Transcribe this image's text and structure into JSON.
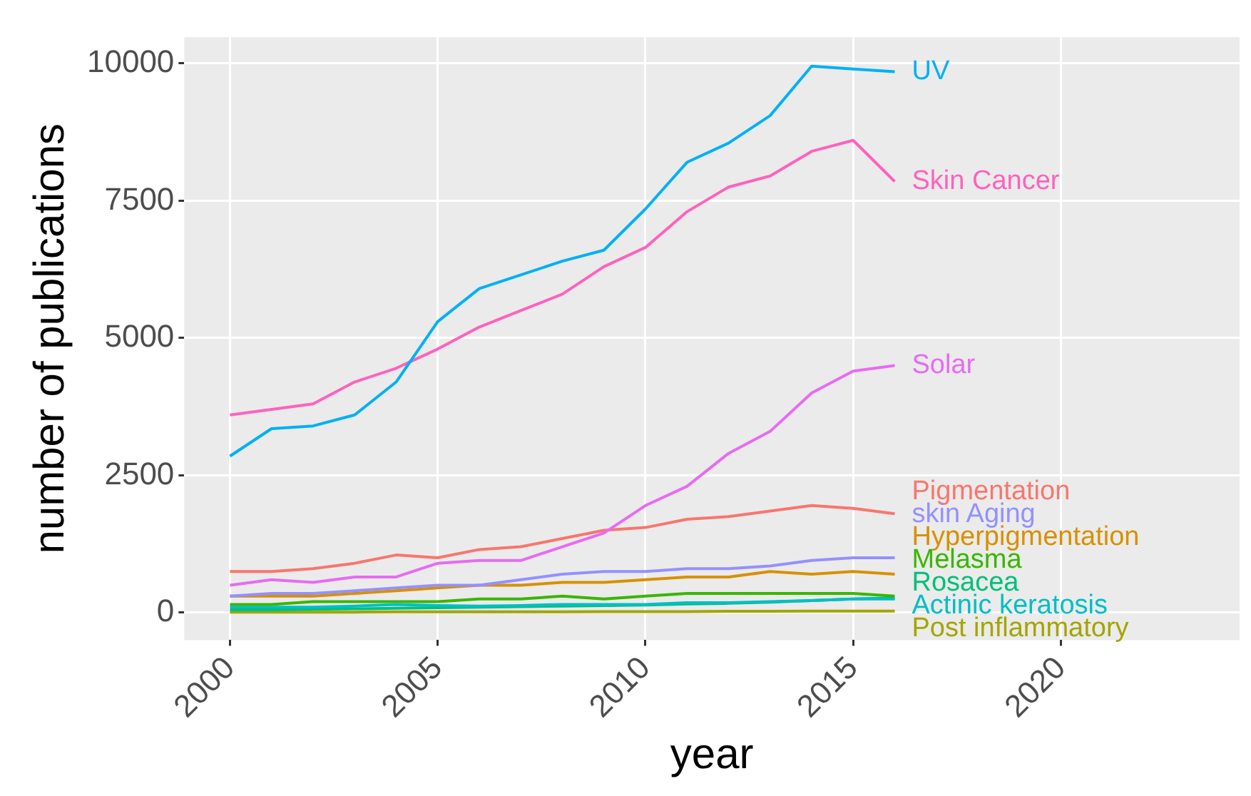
{
  "chart_data": {
    "type": "line",
    "xlabel": "year",
    "ylabel": "number of publications",
    "x": [
      2000,
      2001,
      2002,
      2003,
      2004,
      2005,
      2006,
      2007,
      2008,
      2009,
      2010,
      2011,
      2012,
      2013,
      2014,
      2015,
      2016
    ],
    "xlim": [
      1998.9,
      2024.3
    ],
    "xticks": [
      2000,
      2005,
      2010,
      2015,
      2020
    ],
    "ylim": [
      -500,
      10480
    ],
    "yticks": [
      0,
      2500,
      5000,
      7500,
      10000
    ],
    "grid": true,
    "legend": false,
    "marker": "none",
    "line_style": "solid",
    "series": [
      {
        "name": "UV",
        "color": "#00b0f6",
        "values": [
          2850,
          3350,
          3400,
          3600,
          4200,
          5300,
          5900,
          6150,
          6400,
          6600,
          7350,
          8200,
          8550,
          9050,
          9950,
          9900,
          9850
        ]
      },
      {
        "name": "Skin Cancer",
        "color": "#ff62bc",
        "values": [
          3600,
          3700,
          3800,
          4200,
          4450,
          4800,
          5200,
          5500,
          5800,
          6300,
          6650,
          7300,
          7750,
          7950,
          8400,
          8600,
          7850
        ]
      },
      {
        "name": "Solar",
        "color": "#e76bf3",
        "values": [
          500,
          600,
          550,
          650,
          650,
          900,
          950,
          950,
          1200,
          1450,
          1950,
          2300,
          2900,
          3300,
          4000,
          4400,
          4500
        ]
      },
      {
        "name": "Pigmentation",
        "color": "#f8766d",
        "values": [
          750,
          750,
          800,
          900,
          1050,
          1000,
          1150,
          1200,
          1350,
          1500,
          1550,
          1700,
          1750,
          1850,
          1950,
          1900,
          1800
        ]
      },
      {
        "name": "skin Aging",
        "color": "#9590ff",
        "values": [
          300,
          350,
          350,
          400,
          450,
          500,
          500,
          600,
          700,
          750,
          750,
          800,
          800,
          850,
          950,
          1000,
          1000
        ]
      },
      {
        "name": "Hyperpigmentation",
        "color": "#d89000",
        "values": [
          300,
          300,
          300,
          350,
          400,
          450,
          500,
          500,
          550,
          550,
          600,
          650,
          650,
          750,
          700,
          750,
          700
        ]
      },
      {
        "name": "Melasma",
        "color": "#39b600",
        "values": [
          150,
          150,
          200,
          200,
          200,
          200,
          250,
          250,
          300,
          250,
          300,
          350,
          350,
          350,
          350,
          350,
          300
        ]
      },
      {
        "name": "Actinic keratosis",
        "color": "#00bfc4",
        "values": [
          100,
          100,
          100,
          120,
          150,
          130,
          120,
          130,
          150,
          150,
          150,
          180,
          180,
          200,
          220,
          250,
          250
        ]
      },
      {
        "name": "Rosacea",
        "color": "#00bf7d",
        "values": [
          50,
          50,
          60,
          70,
          80,
          90,
          100,
          110,
          120,
          130,
          140,
          160,
          170,
          190,
          220,
          250,
          270
        ]
      },
      {
        "name": "Post inflammatory",
        "color": "#a3a500",
        "values": [
          10,
          10,
          10,
          10,
          15,
          15,
          15,
          15,
          15,
          20,
          20,
          20,
          25,
          25,
          30,
          30,
          30
        ]
      }
    ]
  }
}
